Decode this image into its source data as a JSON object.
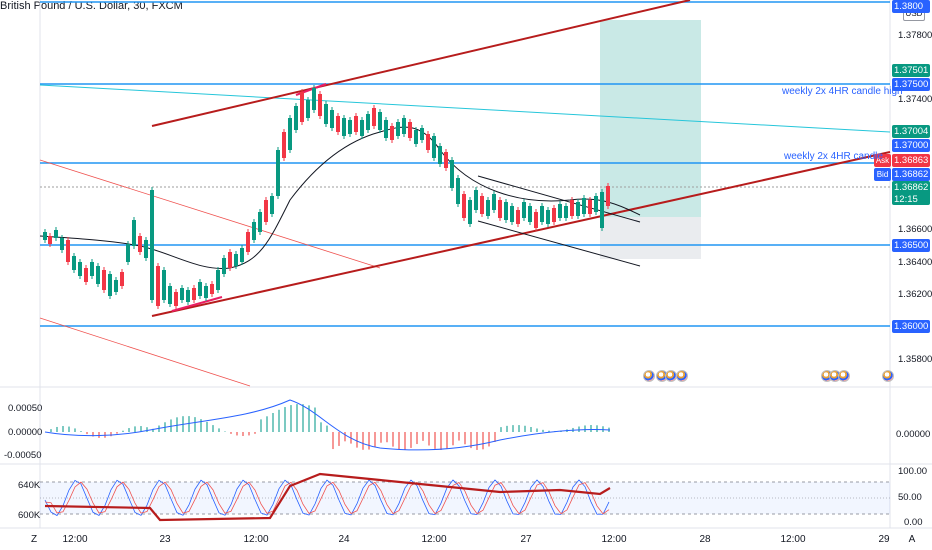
{
  "header": {
    "title": "British Pound / U.S. Dollar, 30, FXCM",
    "currency": "USD"
  },
  "price_axis": {
    "ticks": [
      "1.37800",
      "1.37400",
      "1.37000",
      "1.36600",
      "1.36400",
      "1.36200",
      "1.35800"
    ]
  },
  "price_labels": {
    "top": "1.3800",
    "l_37501": "1.37501",
    "l_37500": "1.37500",
    "l_37004": "1.37004",
    "l_37000": "1.37000",
    "ask_tag": "Ask",
    "ask": "1.36863",
    "bid_tag": "Bid",
    "bid": "1.36862",
    "last": "1.36862",
    "countdown": "12:15",
    "l_36500": "1.36500",
    "l_36000": "1.36000"
  },
  "annotations": {
    "weekly_high": "weekly 2x 4HR candle high",
    "weekly_low": "weekly 2x 4HR candle"
  },
  "macd_axis": {
    "top": "0.00050",
    "mid": "0.00000",
    "bottom": "-0.00050",
    "right_mid": "0.00000"
  },
  "stoch_axis": {
    "left_top": "640K",
    "left_bottom": "600K",
    "r100": "100.00",
    "r50": "50.00",
    "r0": "0.00"
  },
  "time_axis": {
    "labels": [
      "12:00",
      "23",
      "12:00",
      "24",
      "12:00",
      "27",
      "12:00",
      "28",
      "12:00",
      "29"
    ],
    "left_corner": "Z",
    "right_corner": "A"
  },
  "colors": {
    "blue_line": "#2196f3",
    "teal_line": "#26c6da",
    "channel_red": "#b71c1c",
    "up_candle": "#089981",
    "down_candle": "#f23645",
    "label_green": "#089981",
    "label_blue": "#2962ff",
    "label_red": "#f23645"
  }
}
